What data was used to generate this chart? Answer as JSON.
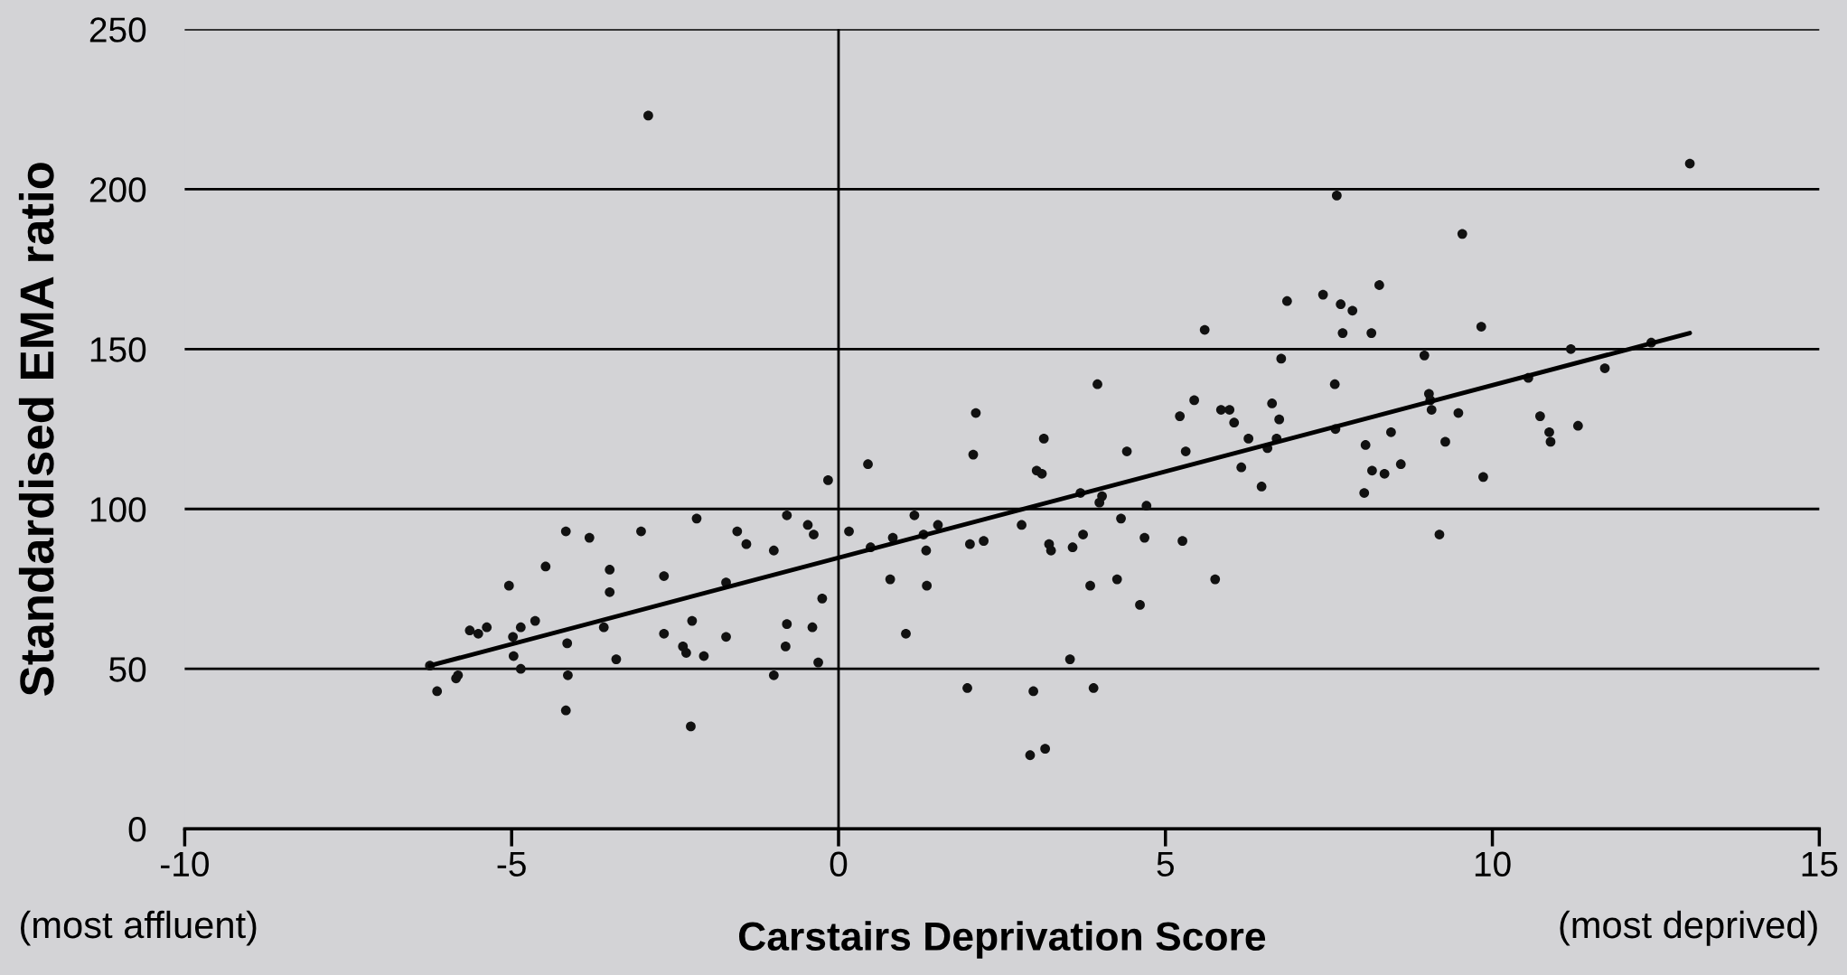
{
  "chart_data": {
    "type": "scatter",
    "xlabel": "Carstairs Deprivation Score",
    "ylabel": "Standardised EMA ratio",
    "annotations": [
      "(most affluent)",
      "(most deprived)"
    ],
    "xlim": [
      -10,
      15
    ],
    "xticks": [
      -10,
      -5,
      0,
      5,
      10,
      15
    ],
    "ylim": [
      0,
      250
    ],
    "yticks": [
      0,
      50,
      100,
      150,
      200,
      250
    ],
    "grid": "y",
    "ref_lines": [
      {
        "axis": "x",
        "value": 0,
        "color": "#000000"
      }
    ],
    "series": [
      {
        "marker": "circle",
        "color": "#111111",
        "x": [
          -6.25,
          -6.14,
          -5.85,
          -5.82,
          -5.64,
          -5.51,
          -5.38,
          -5.04,
          -4.98,
          -4.97,
          -4.86,
          -4.86,
          -4.64,
          -4.48,
          -4.17,
          -4.15,
          -4.14,
          -4.17,
          -3.81,
          -3.59,
          -3.5,
          -3.5,
          -3.4,
          -3.02,
          -2.91,
          -2.67,
          -2.67,
          -2.38,
          -2.33,
          -2.24,
          -2.17,
          -2.26,
          -2.06,
          -1.72,
          -1.72,
          -1.55,
          -1.41,
          -0.99,
          -0.99,
          -0.79,
          -0.79,
          -0.81,
          -0.47,
          -0.4,
          -0.38,
          -0.31,
          -0.25,
          -0.16,
          0.16,
          0.45,
          0.49,
          0.83,
          0.79,
          1.03,
          1.16,
          1.3,
          1.34,
          1.35,
          1.52,
          1.97,
          2.01,
          2.06,
          2.1,
          2.22,
          2.8,
          2.93,
          2.98,
          3.03,
          3.11,
          3.14,
          3.22,
          3.25,
          3.16,
          3.54,
          3.58,
          3.7,
          3.74,
          3.85,
          3.9,
          3.96,
          3.99,
          4.03,
          4.26,
          4.32,
          4.41,
          4.61,
          4.68,
          4.71,
          5.26,
          5.22,
          5.31,
          5.44,
          5.6,
          5.76,
          5.85,
          5.98,
          6.05,
          6.16,
          6.27,
          6.47,
          6.56,
          6.63,
          6.7,
          6.74,
          6.77,
          6.86,
          7.41,
          7.59,
          7.6,
          7.62,
          7.68,
          7.71,
          7.86,
          8.04,
          8.06,
          8.15,
          8.16,
          8.27,
          8.35,
          8.45,
          8.6,
          8.96,
          9.03,
          9.05,
          9.07,
          9.19,
          9.28,
          9.48,
          9.54,
          9.83,
          9.86,
          10.55,
          10.73,
          10.87,
          10.89,
          11.31,
          11.2,
          11.72,
          12.43,
          13.02
        ],
        "values": [
          51,
          43,
          47,
          48,
          62,
          61,
          63,
          76,
          60,
          54,
          63,
          50,
          65,
          82,
          93,
          58,
          48,
          37,
          91,
          63,
          81,
          74,
          53,
          93,
          223,
          79,
          61,
          57,
          55,
          65,
          97,
          32,
          54,
          77,
          60,
          93,
          89,
          87,
          48,
          98,
          64,
          57,
          95,
          63,
          92,
          52,
          72,
          109,
          93,
          114,
          88,
          91,
          78,
          61,
          98,
          92,
          87,
          76,
          95,
          44,
          89,
          117,
          130,
          90,
          95,
          23,
          43,
          112,
          111,
          122,
          89,
          87,
          25,
          53,
          88,
          105,
          92,
          76,
          44,
          139,
          102,
          104,
          78,
          97,
          118,
          70,
          91,
          101,
          90,
          129,
          118,
          134,
          156,
          78,
          131,
          131,
          127,
          113,
          122,
          107,
          119,
          133,
          122,
          128,
          147,
          165,
          167,
          139,
          125,
          198,
          164,
          155,
          162,
          105,
          120,
          155,
          112,
          170,
          111,
          124,
          114,
          148,
          136,
          134,
          131,
          92,
          121,
          130,
          186,
          157,
          110,
          141,
          129,
          124,
          121,
          126,
          150,
          144,
          152,
          208
        ]
      },
      {
        "type": "line",
        "marker": "none",
        "color": "#000000",
        "x": [
          -6.25,
          13.02
        ],
        "values": [
          51,
          155
        ]
      }
    ]
  }
}
